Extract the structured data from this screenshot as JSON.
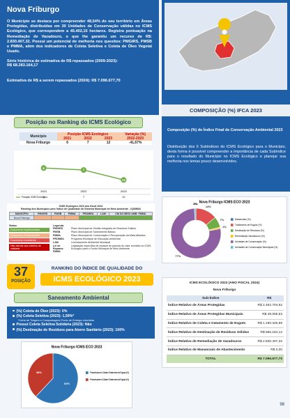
{
  "header": {
    "title": "Nova Friburgo",
    "paragraph": "O Município se destaca por compreender 48,54% do seu território em Áreas Protegidas, distribuídas em 30 Unidades de Conservação válidas no ICMS Ecológico, que correspondem a 45.402,15 hectares. Registra pontuação na Remediação de Vazadouro, o que lhe garantiu um recurso de R$: 2.830.407,32. Possui um potencial de melhoria nos quesitos: PMGIRS, PMSB e PMMA, além dos indicadores de Coleta Seletiva e Coleta de Óleo Vegetal Usado.",
    "series_label": "Série histórica de estimativa de R$ repassados (2009-2023):",
    "series_value": "R$ 68.283.164,17",
    "estimate": "Estimativa de R$ a serem repassados (2024): R$ 7.096.677,70"
  },
  "composition": {
    "title": "COMPOSIÇÃO (%) IFCA 2023",
    "subtitle": "Composição (%) do Índice Final de Conservação Ambiental 2023",
    "text": "Distribuição dos 6 Subíndices do ICMS Ecológico para o Município, desta forma é possível compreender a importância de cada Subíndice para o resultado do Município no ICMS Ecológico e planejar sua melhoria nos temas pouco desenvolvidos."
  },
  "ranking": {
    "title": "Posição no Ranking do ICMS Ecológico",
    "table": {
      "municipality_header": "Município",
      "position_header": "Posição ICMS Ecológico",
      "variation_header": "Variação (%)",
      "variation_years": "2022-2023",
      "municipality": "Nova Friburgo",
      "variation": "-41,67%"
    }
  },
  "iqsmma": {
    "title": "ICMS Ecológico 2023 ano fiscal 2024",
    "subtitle": "Ranking dos Municípios pelo Índice de Qualidade do Sistema Municipal de Meio Ambiente - IQSMMA",
    "columns": [
      "MUNICÍPIO",
      "PMGIRS",
      "PMSB",
      "PMMA",
      "PROMEA",
      "LAM",
      "CM DO MEIO AMB. FMMA"
    ],
    "municipality": "Nova Friburgo",
    "cell_colors": [
      "#f4b183",
      "#f4b183",
      "#f4b183",
      "#70ad47",
      "#70ad47",
      "#70ad47"
    ],
    "status_title": "Status",
    "statuses": [
      {
        "label": "Documento Implementado",
        "color": "#70ad47"
      },
      {
        "label": "Documento Desatualizado",
        "color": "#f4b183"
      },
      {
        "label": "Documento Inexistente",
        "color": "#e05050"
      },
      {
        "label": "Não atende aos critérios de validade",
        "color": "#c00000"
      }
    ],
    "legend_title": "Legenda:",
    "legend": [
      [
        "PMGIRS",
        "Plano Municipal de Gestão Integrada de Resíduos Sólidos"
      ],
      [
        "PMSB",
        "Plano Municipal de Saneamento Básico"
      ],
      [
        "PMMA",
        "Plano Municipal de Conservação e Recuperação da Mata Atlântica"
      ],
      [
        "PROMEA",
        "Programa Municipal de Educação Ambiental"
      ],
      [
        "LAM",
        "Licenciamento Ambiental Municipal"
      ],
      [
        "Lei de Repasse FMMA",
        "Legislação específica de repasse de parcela do valor recebido do ICMS Ecológico para o Fundo Municipal de Meio Ambiente"
      ]
    ]
  },
  "position": {
    "number": "37",
    "label": "POSIÇÃO",
    "heading": "RANKING DO ÍNDICE DE QUALIDADE DO",
    "heading2": "ICMS ECOLÓGICO 2023"
  },
  "subindex_table": {
    "title": "ICMS ECOLÓGICO 2023 (ANO FISCAL 2024)",
    "municipality": "Nova Friburgo",
    "header": [
      "Sub-Índice",
      "R$"
    ],
    "rows": [
      [
        "Índice Relativo de Áreas Protegidas",
        "R$ 2.462.704,62"
      ],
      [
        "Índice Relativo de Áreas Protegidas Municipais",
        "R$ 48.055,63"
      ],
      [
        "Índice Relativo de Coleta e tratamento de Esgoto",
        "R$ 1.190.325,99"
      ],
      [
        "Índice Relativo de Destinação de Resíduos Sólidos",
        "R$ 565.184,12"
      ],
      [
        "Índice Relativo de Remediação de Vazadouros",
        "R$ 2.830.407,32"
      ],
      [
        "Índice Relativo de Mananciais de Abastecimento",
        "R$ 0,00"
      ]
    ],
    "total": [
      "TOTAL",
      "R$ 7.096.677,70"
    ]
  },
  "sanitation": {
    "title": "Saneamento Ambiental",
    "items": [
      "(%) Coleta de Óleo (2023): 0%",
      "(%) Coleta Seletiva (2023): 1,59%*",
      "*Linha de Triagem e Compostagem/ Ponto de Entrega voluntária",
      "Possui Coleta Seletiva Solidária (2023): Não",
      "(%) Destinação de Resíduos para Aterro Sanitário (2023): 100%"
    ]
  },
  "page_number": "98",
  "chart_data": [
    {
      "type": "line",
      "categories": [
        "2021",
        "2022",
        "2023"
      ],
      "series": [
        {
          "name": "Posição ICMS Ecológico",
          "color": "#70ad47",
          "values": [
            6,
            7,
            12
          ]
        }
      ],
      "ylim": [
        0,
        14
      ],
      "inverted": true
    },
    {
      "type": "donut",
      "title": "Nova Friburgo ICMS ECO 2023",
      "categories": [
        "Mananciais (%)",
        "Tratamento de Esgoto (%)",
        "Destinação de Resíduos (%)",
        "Remediação Vazadouros (%)",
        "Unidades de Conservação (%)",
        "Unidades de Conservação Municipais (%)"
      ],
      "values": [
        0,
        14,
        7,
        1,
        77,
        1
      ],
      "value_labels": [
        "0%",
        "14%",
        "7%",
        "1%",
        "77%",
        "1%"
      ],
      "colors": [
        "#4472c4",
        "#e05050",
        "#70ad47",
        "#ffc000",
        "#8e5ea2",
        "#5bc0de"
      ]
    },
    {
      "type": "pie",
      "title": "Nova Friburgo ICMS ECO 2023",
      "categories": [
        "Percentual com Coleta e Tratamento de Esgoto (%)",
        "Percentual sem Coleta e Tratamento de Esgoto (%)"
      ],
      "values": [
        62,
        38
      ],
      "value_labels": [
        "62%",
        "38%"
      ],
      "colors": [
        "#2e75b6",
        "#c0392b"
      ]
    }
  ]
}
